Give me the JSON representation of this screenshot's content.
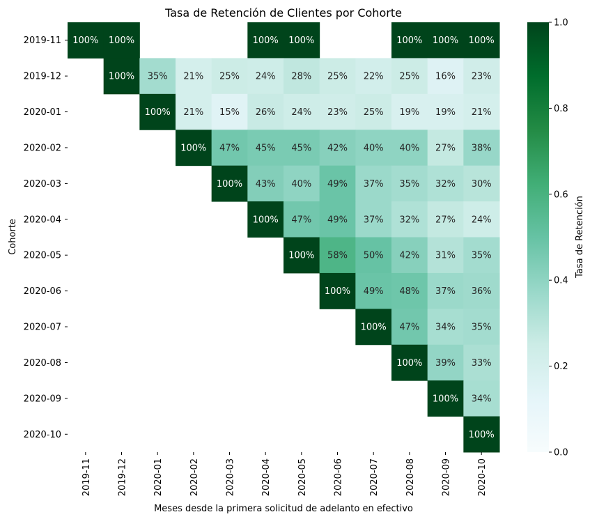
{
  "chart_data": {
    "type": "heatmap",
    "title": "Tasa de Retención de Clientes por Cohorte",
    "xlabel": "Meses desde la primera solicitud de adelanto en efectivo",
    "ylabel": "Cohorte",
    "x_categories": [
      "2019-11",
      "2019-12",
      "2020-01",
      "2020-02",
      "2020-03",
      "2020-04",
      "2020-05",
      "2020-06",
      "2020-07",
      "2020-08",
      "2020-09",
      "2020-10"
    ],
    "y_categories": [
      "2019-11",
      "2019-12",
      "2020-01",
      "2020-02",
      "2020-03",
      "2020-04",
      "2020-05",
      "2020-06",
      "2020-07",
      "2020-08",
      "2020-09",
      "2020-10"
    ],
    "values": [
      [
        1.0,
        1.0,
        null,
        null,
        null,
        1.0,
        1.0,
        null,
        null,
        1.0,
        1.0,
        1.0
      ],
      [
        null,
        1.0,
        0.35,
        0.21,
        0.25,
        0.24,
        0.28,
        0.25,
        0.22,
        0.25,
        0.16,
        0.23
      ],
      [
        null,
        null,
        1.0,
        0.21,
        0.15,
        0.26,
        0.24,
        0.23,
        0.25,
        0.19,
        0.19,
        0.21
      ],
      [
        null,
        null,
        null,
        1.0,
        0.47,
        0.45,
        0.45,
        0.42,
        0.4,
        0.4,
        0.27,
        0.38
      ],
      [
        null,
        null,
        null,
        null,
        1.0,
        0.43,
        0.4,
        0.49,
        0.37,
        0.35,
        0.32,
        0.3
      ],
      [
        null,
        null,
        null,
        null,
        null,
        1.0,
        0.47,
        0.49,
        0.37,
        0.32,
        0.27,
        0.24
      ],
      [
        null,
        null,
        null,
        null,
        null,
        null,
        1.0,
        0.58,
        0.5,
        0.42,
        0.31,
        0.35
      ],
      [
        null,
        null,
        null,
        null,
        null,
        null,
        null,
        1.0,
        0.49,
        0.48,
        0.37,
        0.36
      ],
      [
        null,
        null,
        null,
        null,
        null,
        null,
        null,
        null,
        1.0,
        0.47,
        0.34,
        0.35
      ],
      [
        null,
        null,
        null,
        null,
        null,
        null,
        null,
        null,
        null,
        1.0,
        0.39,
        0.33
      ],
      [
        null,
        null,
        null,
        null,
        null,
        null,
        null,
        null,
        null,
        null,
        1.0,
        0.34
      ],
      [
        null,
        null,
        null,
        null,
        null,
        null,
        null,
        null,
        null,
        null,
        null,
        1.0
      ]
    ],
    "value_format": "percent",
    "colorbar": {
      "label": "Tasa de Retención",
      "range": [
        0,
        1
      ],
      "ticks": [
        "0.0",
        "0.2",
        "0.4",
        "0.6",
        "0.8",
        "1.0"
      ],
      "colormap": "BuGn",
      "colors": [
        "#f7fcfd",
        "#e5f5f9",
        "#ccece6",
        "#99d8c9",
        "#66c2a4",
        "#41ae76",
        "#238b45",
        "#006d2c",
        "#00441b"
      ]
    }
  }
}
